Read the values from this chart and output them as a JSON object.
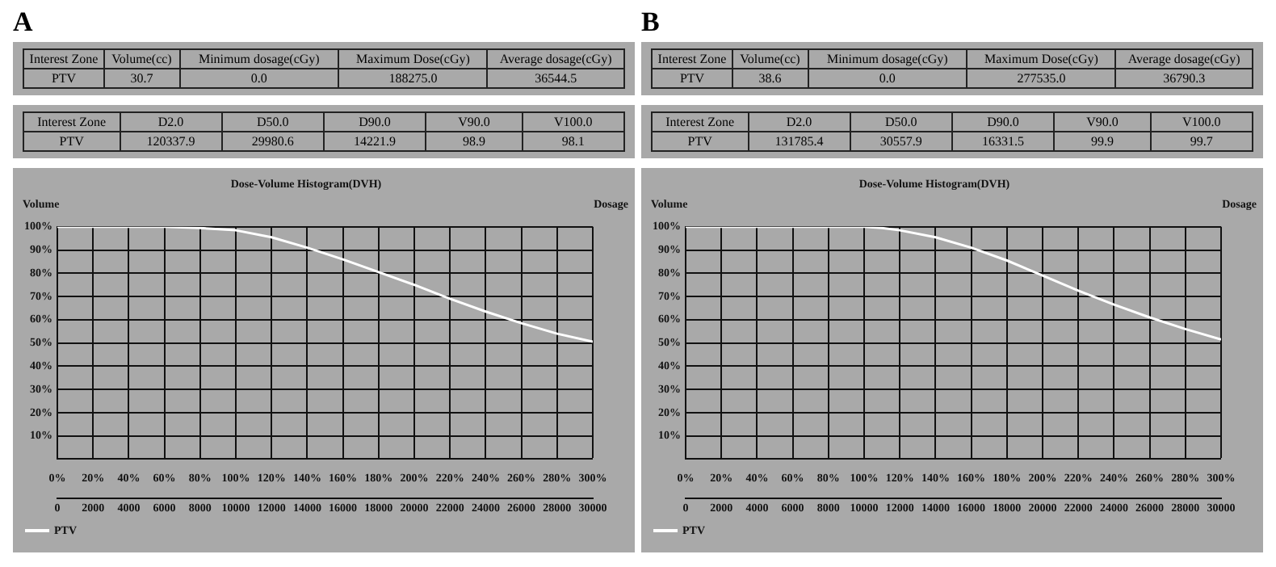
{
  "chart_data": [
    {
      "type": "other",
      "title": "A",
      "annotations": [
        "Interest Zone",
        "Volume(cc)",
        "Minimum dosage(cGy)",
        "Maximum Dose(cGy)",
        "Average dosage(cGy)",
        "PTV",
        "30.7",
        "0.0",
        "188275.0",
        "36544.5",
        "Interest Zone",
        "D2.0",
        "D50.0",
        "D90.0",
        "V90.0",
        "V100.0",
        "PTV",
        "120337.9",
        "29980.6",
        "14221.9",
        "98.9",
        "98.1"
      ]
    },
    {
      "type": "other",
      "title": "B",
      "annotations": [
        "Interest Zone",
        "Volume(cc)",
        "Minimum dosage(cGy)",
        "Maximum Dose(cGy)",
        "Average dosage(cGy)",
        "PTV",
        "38.6",
        "0.0",
        "277535.0",
        "36790.3",
        "Interest Zone",
        "D2.0",
        "D50.0",
        "D90.0",
        "V90.0",
        "V100.0",
        "PTV",
        "131785.4",
        "30557.9",
        "16331.5",
        "99.9",
        "99.7"
      ]
    },
    {
      "type": "line",
      "title": "Dose-Volume Histogram(DVH)",
      "xlabel": "Dosage",
      "ylabel": "Volume",
      "legend": "bottom left",
      "grid": true,
      "marker": "none",
      "x": [
        0,
        6000,
        8000,
        10000,
        12000,
        14000,
        16000,
        18000,
        20000,
        22000,
        24000,
        26000,
        28000,
        30000
      ],
      "series": [
        {
          "name": "PTV",
          "color": "#ffffff",
          "values": [
            100,
            100,
            99.5,
            98.5,
            95.5,
            91,
            86,
            80.5,
            75,
            69,
            63.5,
            58.5,
            54,
            50.5
          ]
        }
      ],
      "xlim": [
        0,
        30000
      ],
      "xticks": [
        0,
        2000,
        4000,
        6000,
        8000,
        10000,
        12000,
        14000,
        16000,
        18000,
        20000,
        22000,
        24000,
        26000,
        28000,
        30000
      ],
      "x2lim": [
        0,
        300
      ],
      "x2ticks": [
        {
          "value": 0,
          "label": "0%"
        },
        {
          "value": 20,
          "label": "20%"
        },
        {
          "value": 40,
          "label": "40%"
        },
        {
          "value": 60,
          "label": "60%"
        },
        {
          "value": 80,
          "label": "80%"
        },
        {
          "value": 100,
          "label": "100%"
        },
        {
          "value": 120,
          "label": "120%"
        },
        {
          "value": 140,
          "label": "140%"
        },
        {
          "value": 160,
          "label": "160%"
        },
        {
          "value": 180,
          "label": "180%"
        },
        {
          "value": 200,
          "label": "200%"
        },
        {
          "value": 220,
          "label": "220%"
        },
        {
          "value": 240,
          "label": "240%"
        },
        {
          "value": 260,
          "label": "260%"
        },
        {
          "value": 280,
          "label": "280%"
        },
        {
          "value": 300,
          "label": "300%"
        }
      ],
      "ylim": [
        0,
        100
      ],
      "yticks": [
        {
          "value": 0,
          "label": null
        },
        {
          "value": 10,
          "label": "10%"
        },
        {
          "value": 20,
          "label": "20%"
        },
        {
          "value": 30,
          "label": "30%"
        },
        {
          "value": 40,
          "label": "40%"
        },
        {
          "value": 50,
          "label": "50%"
        },
        {
          "value": 60,
          "label": "60%"
        },
        {
          "value": 70,
          "label": "70%"
        },
        {
          "value": 80,
          "label": "80%"
        },
        {
          "value": 90,
          "label": "90%"
        },
        {
          "value": 100,
          "label": "100%"
        }
      ]
    },
    {
      "type": "line",
      "title": "Dose-Volume Histogram(DVH)",
      "xlabel": "Dosage",
      "ylabel": "Volume",
      "legend": "bottom left",
      "grid": true,
      "marker": "none",
      "x": [
        0,
        10000,
        11000,
        12000,
        14000,
        16000,
        18000,
        20000,
        22000,
        24000,
        26000,
        28000,
        30000
      ],
      "series": [
        {
          "name": "PTV",
          "color": "#ffffff",
          "values": [
            100,
            100,
            99.5,
            98.5,
            95.5,
            91,
            85.5,
            79,
            72.5,
            66.5,
            61,
            56,
            51.5
          ]
        }
      ],
      "xlim": [
        0,
        30000
      ],
      "xticks": [
        0,
        2000,
        4000,
        6000,
        8000,
        10000,
        12000,
        14000,
        16000,
        18000,
        20000,
        22000,
        24000,
        26000,
        28000,
        30000
      ],
      "x2lim": [
        0,
        300
      ],
      "x2ticks": [
        {
          "value": 0,
          "label": "0%"
        },
        {
          "value": 20,
          "label": "20%"
        },
        {
          "value": 40,
          "label": "40%"
        },
        {
          "value": 60,
          "label": "60%"
        },
        {
          "value": 80,
          "label": "80%"
        },
        {
          "value": 100,
          "label": "100%"
        },
        {
          "value": 120,
          "label": "120%"
        },
        {
          "value": 140,
          "label": "140%"
        },
        {
          "value": 160,
          "label": "160%"
        },
        {
          "value": 180,
          "label": "180%"
        },
        {
          "value": 200,
          "label": "200%"
        },
        {
          "value": 220,
          "label": "220%"
        },
        {
          "value": 240,
          "label": "240%"
        },
        {
          "value": 260,
          "label": "260%"
        },
        {
          "value": 280,
          "label": "280%"
        },
        {
          "value": 300,
          "label": "300%"
        }
      ],
      "ylim": [
        0,
        100
      ],
      "yticks": [
        {
          "value": 0,
          "label": null
        },
        {
          "value": 10,
          "label": "10%"
        },
        {
          "value": 20,
          "label": "20%"
        },
        {
          "value": 30,
          "label": "30%"
        },
        {
          "value": 40,
          "label": "40%"
        },
        {
          "value": 50,
          "label": "50%"
        },
        {
          "value": 60,
          "label": "60%"
        },
        {
          "value": 70,
          "label": "70%"
        },
        {
          "value": 80,
          "label": "80%"
        },
        {
          "value": 90,
          "label": "90%"
        },
        {
          "value": 100,
          "label": "100%"
        }
      ]
    }
  ]
}
